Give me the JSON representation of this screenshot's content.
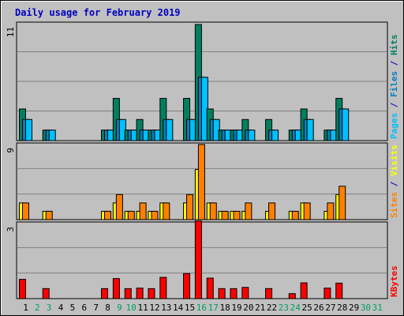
{
  "chart_data": {
    "type": "bar",
    "title": "Daily usage for February 2019",
    "categories": [
      "1",
      "2",
      "3",
      "4",
      "5",
      "6",
      "7",
      "8",
      "9",
      "10",
      "11",
      "12",
      "13",
      "14",
      "15",
      "16",
      "17",
      "18",
      "19",
      "20",
      "21",
      "22",
      "23",
      "24",
      "25",
      "26",
      "27",
      "28",
      "29",
      "30",
      "31"
    ],
    "weekend_days": [
      2,
      3,
      9,
      10,
      16,
      17,
      23,
      24,
      30,
      31
    ],
    "panels": [
      {
        "id": "hits",
        "ymax": 11,
        "tick_label": "11",
        "legend": [
          {
            "text": "Pages",
            "color": "#00c0ff"
          },
          {
            "text": " / ",
            "color": "#0000c0"
          },
          {
            "text": "Files",
            "color": "#0080c0"
          },
          {
            "text": " / ",
            "color": "#0000c0"
          },
          {
            "text": "Hits",
            "color": "#008060"
          }
        ],
        "series": [
          {
            "name": "Hits",
            "color": "#008060",
            "values": [
              3,
              0,
              1,
              0,
              0,
              0,
              0,
              1,
              4,
              1,
              2,
              1,
              4,
              0,
              4,
              11,
              3,
              1,
              1,
              2,
              0,
              2,
              0,
              1,
              3,
              0,
              1,
              4,
              0,
              0,
              0
            ]
          },
          {
            "name": "Files",
            "color": "#0080c0",
            "values": [
              2,
              0,
              1,
              0,
              0,
              0,
              0,
              1,
              2,
              1,
              1,
              1,
              2,
              0,
              2,
              6,
              2,
              1,
              1,
              1,
              0,
              1,
              0,
              1,
              2,
              0,
              1,
              3,
              0,
              0,
              0
            ]
          },
          {
            "name": "Pages",
            "color": "#00c0ff",
            "values": [
              2,
              0,
              1,
              0,
              0,
              0,
              0,
              1,
              2,
              1,
              1,
              1,
              2,
              0,
              2,
              6,
              2,
              1,
              1,
              1,
              0,
              1,
              0,
              1,
              2,
              0,
              1,
              3,
              0,
              0,
              0
            ]
          }
        ]
      },
      {
        "id": "visits",
        "ymax": 9,
        "tick_label": "9",
        "legend": [
          {
            "text": "Sites",
            "color": "#ff8000"
          },
          {
            "text": " / ",
            "color": "#0000c0"
          },
          {
            "text": "Visits",
            "color": "#ffff00"
          }
        ],
        "series": [
          {
            "name": "Visits",
            "color": "#ffff00",
            "values": [
              2,
              0,
              1,
              0,
              0,
              0,
              0,
              1,
              2,
              1,
              1,
              1,
              2,
              0,
              2,
              6,
              2,
              1,
              1,
              1,
              0,
              1,
              0,
              1,
              2,
              0,
              1,
              3,
              0,
              0,
              0
            ]
          },
          {
            "name": "Sites",
            "color": "#ff8000",
            "values": [
              2,
              0,
              1,
              0,
              0,
              0,
              0,
              1,
              3,
              1,
              2,
              1,
              2,
              0,
              3,
              9,
              2,
              1,
              1,
              2,
              0,
              2,
              0,
              1,
              2,
              0,
              2,
              4,
              0,
              0,
              0
            ]
          }
        ]
      },
      {
        "id": "kbytes",
        "ymax": 3,
        "tick_label": "3",
        "legend": [
          {
            "text": "KBytes",
            "color": "#ff0000"
          }
        ],
        "series": [
          {
            "name": "KBytes",
            "color": "#ff0000",
            "values": [
              0.77,
              0,
              0.4,
              0,
              0,
              0,
              0,
              0.4,
              0.8,
              0.4,
              0.42,
              0.4,
              0.85,
              0,
              1.0,
              3.1,
              0.82,
              0.4,
              0.4,
              0.45,
              0,
              0.4,
              0,
              0.2,
              0.63,
              0,
              0.42,
              0.62,
              0,
              0,
              0
            ]
          }
        ]
      }
    ],
    "colors": {
      "title": "#0000c0",
      "weekday_label": "#000000",
      "weekend_label": "#00a060",
      "plot_background": "#c0c0c0",
      "gridline": "#808080"
    }
  }
}
